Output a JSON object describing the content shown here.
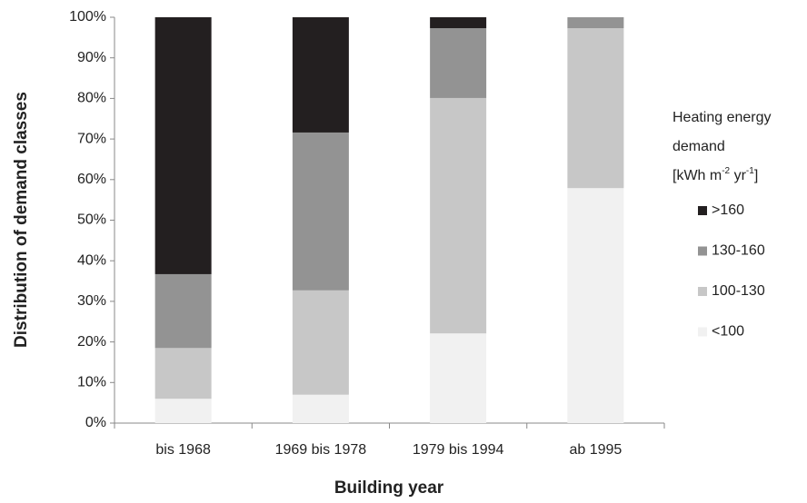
{
  "chart_data": {
    "type": "stacked_bar",
    "x_label": "Building year",
    "y_label": "Distribution of demand classes",
    "legend_title": {
      "lines": [
        "Heating energy",
        "demand"
      ],
      "unit": [
        "[kWh m",
        "-2",
        " yr",
        "-1",
        "]"
      ]
    },
    "categories": [
      "bis 1968",
      "1969 bis 1978",
      "1979 bis 1994",
      "ab 1995"
    ],
    "series": [
      {
        "name": "<100",
        "color": "#f1f1f1",
        "values": [
          6,
          7,
          22.1,
          57.9
        ]
      },
      {
        "name": "100-130",
        "color": "#c7c7c7",
        "values": [
          12.5,
          25.7,
          58,
          39.4
        ]
      },
      {
        "name": "130-160",
        "color": "#939393",
        "values": [
          18.2,
          38.9,
          17.2,
          2.7
        ]
      },
      {
        "name": ">160",
        "color": "#231f20",
        "values": [
          63.3,
          28.4,
          2.7,
          0
        ]
      }
    ],
    "ylim": [
      0,
      100
    ],
    "yticks": [
      {
        "value": 0,
        "label": "0%"
      },
      {
        "value": 10,
        "label": "10%"
      },
      {
        "value": 20,
        "label": "20%"
      },
      {
        "value": 30,
        "label": "30%"
      },
      {
        "value": 40,
        "label": "40%"
      },
      {
        "value": 50,
        "label": "50%"
      },
      {
        "value": 60,
        "label": "60%"
      },
      {
        "value": 70,
        "label": "70%"
      },
      {
        "value": 80,
        "label": "80%"
      },
      {
        "value": 90,
        "label": "90%"
      },
      {
        "value": 100,
        "label": "100%"
      }
    ],
    "grid": false,
    "legend": "right"
  }
}
